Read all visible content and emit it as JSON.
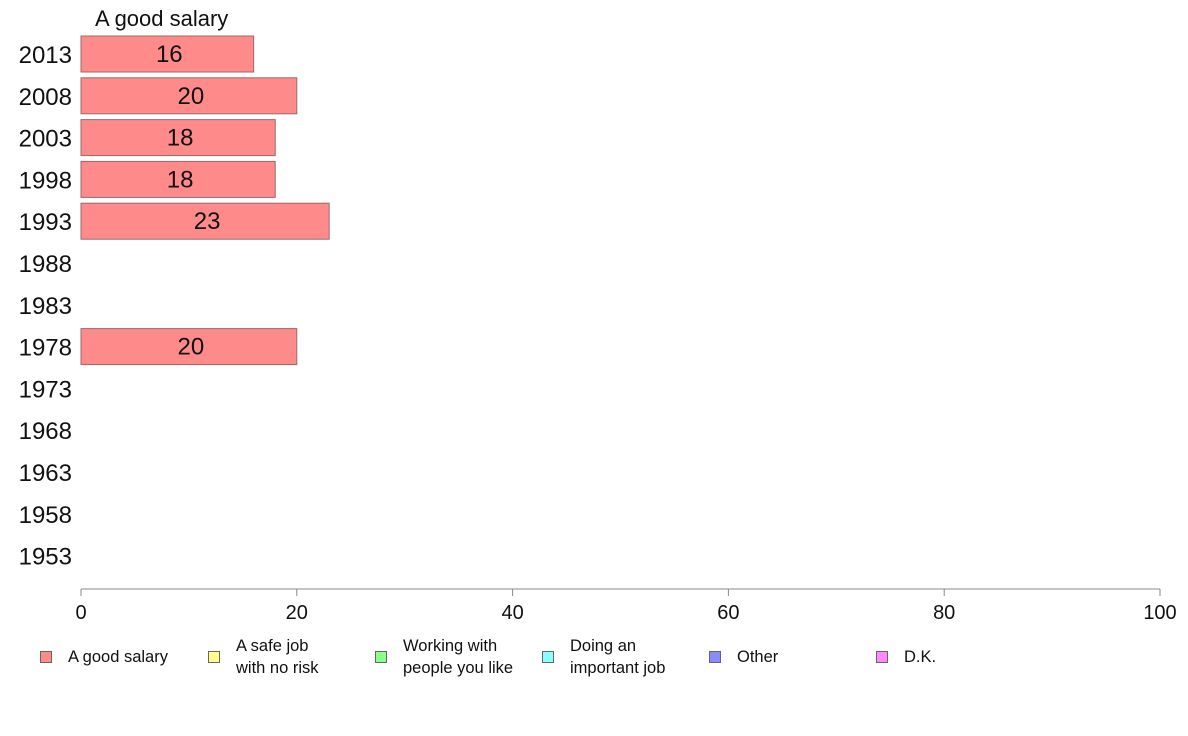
{
  "chart_data": {
    "type": "bar",
    "orientation": "horizontal",
    "title": "A good salary",
    "categories": [
      "2013",
      "2008",
      "2003",
      "1998",
      "1993",
      "1988",
      "1983",
      "1978",
      "1973",
      "1968",
      "1963",
      "1958",
      "1953"
    ],
    "values": [
      16,
      20,
      18,
      18,
      23,
      null,
      null,
      20,
      null,
      null,
      null,
      null,
      null
    ],
    "xlim": [
      0,
      100
    ],
    "x_ticks": [
      "0",
      "20",
      "40",
      "60",
      "80",
      "100"
    ],
    "grid": false,
    "bar_color": "#ff8a8a",
    "legend_position": "bottom",
    "legend": [
      {
        "label": "A good salary",
        "color": "#ff8a8a"
      },
      {
        "label": "A safe job\nwith no risk",
        "color": "#ffff8a"
      },
      {
        "label": "Working with\npeople you like",
        "color": "#8aff8a"
      },
      {
        "label": "Doing an\nimportant job",
        "color": "#8affff"
      },
      {
        "label": "Other",
        "color": "#8a8aff"
      },
      {
        "label": "D.K.",
        "color": "#ff8aff"
      }
    ]
  }
}
